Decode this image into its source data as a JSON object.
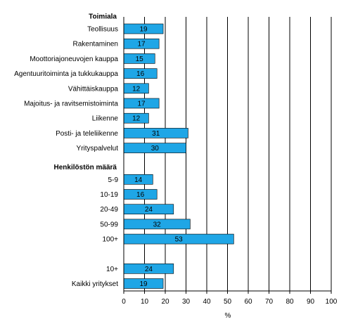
{
  "chart_data": {
    "type": "bar",
    "orientation": "horizontal",
    "xlabel": "%",
    "xlim": [
      0,
      100
    ],
    "xticks": [
      0,
      10,
      20,
      30,
      40,
      50,
      60,
      70,
      80,
      90,
      100
    ],
    "grid": "vertical",
    "bar_color": "#1fa6e6",
    "groups": [
      {
        "heading": "Toimiala",
        "rows": [
          {
            "label": "Teollisuus",
            "value": 19
          },
          {
            "label": "Rakentaminen",
            "value": 17
          },
          {
            "label": "Moottoriajoneuvojen kauppa",
            "value": 15
          },
          {
            "label": "Agentuuritoiminta ja tukkukauppa",
            "value": 16
          },
          {
            "label": "Vähittäiskauppa",
            "value": 12
          },
          {
            "label": "Majoitus- ja ravitsemistoiminta",
            "value": 17
          },
          {
            "label": "Liikenne",
            "value": 12
          },
          {
            "label": "Posti- ja teleliikenne",
            "value": 31
          },
          {
            "label": "Yrityspalvelut",
            "value": 30
          }
        ]
      },
      {
        "heading": "Henkilöstön määrä",
        "rows": [
          {
            "label": "5-9",
            "value": 14
          },
          {
            "label": "10-19",
            "value": 16
          },
          {
            "label": "20-49",
            "value": 24
          },
          {
            "label": "50-99",
            "value": 32
          },
          {
            "label": "100+",
            "value": 53
          }
        ]
      },
      {
        "heading": "",
        "rows": [
          {
            "label": "10+",
            "value": 24
          },
          {
            "label": "Kaikki yritykset",
            "value": 19
          }
        ]
      }
    ]
  }
}
